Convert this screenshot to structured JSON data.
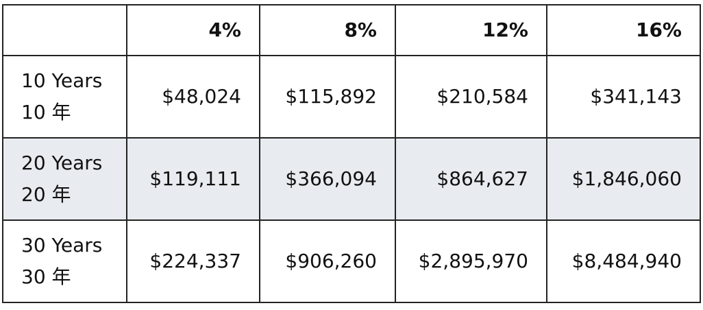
{
  "table": {
    "header": {
      "corner": "",
      "rates": [
        "4%",
        "8%",
        "12%",
        "16%"
      ]
    },
    "rows": [
      {
        "label_en": "10 Years",
        "label_cn": "10 年",
        "values": [
          "$48,024",
          "$115,892",
          "$210,584",
          "$341,143"
        ],
        "highlighted": false
      },
      {
        "label_en": "20 Years",
        "label_cn": "20 年",
        "values": [
          "$119,111",
          "$366,094",
          "$864,627",
          "$1,846,060"
        ],
        "highlighted": true
      },
      {
        "label_en": "30 Years",
        "label_cn": "30 年",
        "values": [
          "$224,337",
          "$906,260",
          "$2,895,970",
          "$8,484,940"
        ],
        "highlighted": false
      }
    ],
    "colors": {
      "border": "#222222",
      "highlight_row": "#e8ebef",
      "text": "#111111"
    }
  }
}
